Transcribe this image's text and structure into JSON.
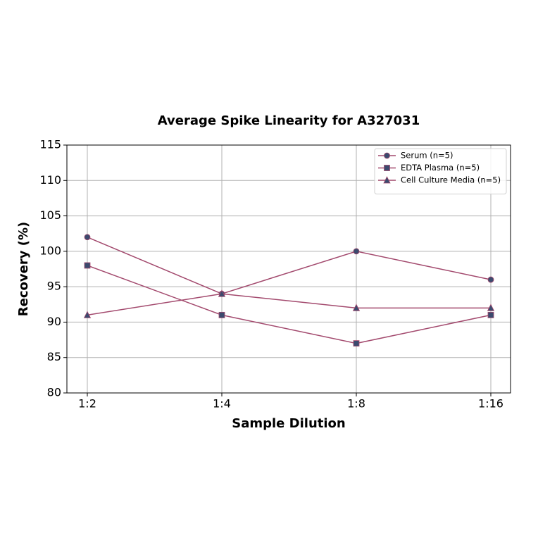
{
  "chart_data": {
    "type": "line",
    "title": "Average Spike Linearity for A327031",
    "x_label": "Sample Dilution",
    "y_label": "Recovery (%)",
    "categories": [
      "1:2",
      "1:4",
      "1:8",
      "1:16"
    ],
    "series": [
      {
        "name": "Serum (n=5)",
        "color": "#a34a6e",
        "marker_color": "#3c4a6e",
        "marker": "circle",
        "values": [
          102,
          94,
          100,
          96
        ]
      },
      {
        "name": "EDTA Plasma (n=5)",
        "color": "#a34a6e",
        "marker_color": "#3c4a6e",
        "marker": "square",
        "values": [
          98,
          91,
          87,
          91
        ]
      },
      {
        "name": "Cell Culture Media (n=5)",
        "color": "#a34a6e",
        "marker_color": "#3c4a6e",
        "marker": "triangle",
        "values": [
          91,
          94,
          92,
          92
        ]
      }
    ],
    "ylim": [
      80,
      115
    ],
    "yticks": [
      80,
      85,
      90,
      95,
      100,
      105,
      110,
      115
    ],
    "grid": true,
    "legend": "upper right"
  }
}
